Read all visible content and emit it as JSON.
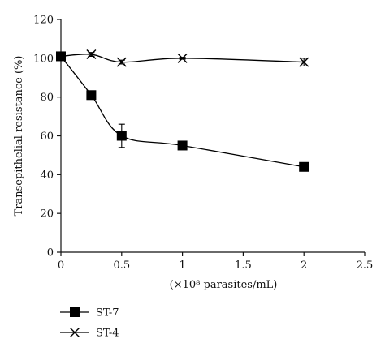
{
  "chart_data": {
    "type": "line",
    "title": "",
    "xlabel": "(×10⁸ parasites/mL)",
    "ylabel": "Transepithelial resistance (%)",
    "xlim": [
      0,
      2.5
    ],
    "ylim": [
      0,
      120
    ],
    "xticks": [
      0,
      0.5,
      1,
      1.5,
      2,
      2.5
    ],
    "xtick_labels": [
      "0",
      "0.5",
      "1",
      "1.5",
      "2",
      "2.5"
    ],
    "yticks": [
      0,
      20,
      40,
      60,
      80,
      100,
      120
    ],
    "ytick_labels": [
      "0",
      "20",
      "40",
      "60",
      "80",
      "100",
      "120"
    ],
    "grid": false,
    "legend_position": "bottom-left",
    "series": [
      {
        "name": "ST-7",
        "marker": "square",
        "color": "#000000",
        "x": [
          0,
          0.25,
          0.5,
          1,
          2
        ],
        "y": [
          101,
          81,
          60,
          55,
          44
        ],
        "error": [
          1,
          1,
          6,
          2,
          1
        ]
      },
      {
        "name": "ST-4",
        "marker": "x",
        "color": "#000000",
        "x": [
          0,
          0.25,
          0.5,
          1,
          2
        ],
        "y": [
          101,
          102,
          98,
          100,
          98
        ],
        "error": [
          0.5,
          1,
          1,
          0.5,
          2
        ]
      }
    ]
  }
}
